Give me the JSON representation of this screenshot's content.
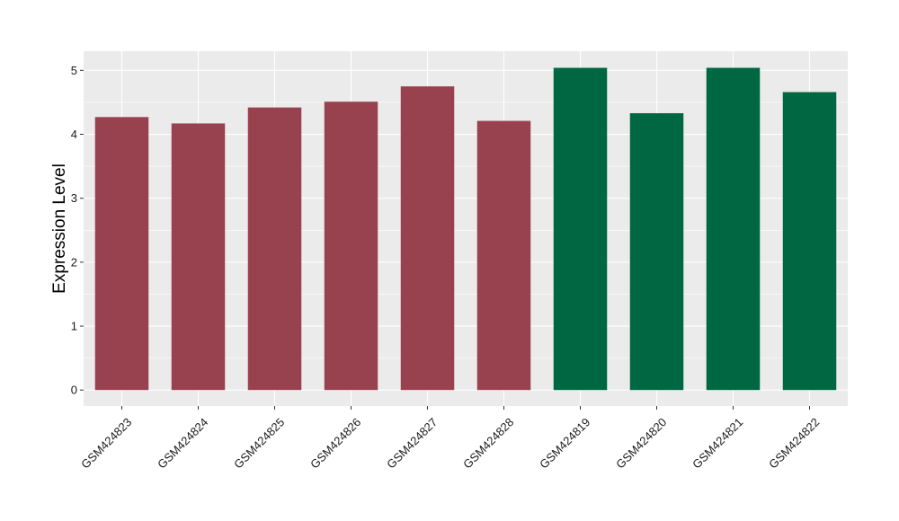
{
  "chart_data": {
    "type": "bar",
    "title": "",
    "xlabel": "",
    "ylabel": "Expression Level",
    "ylim": [
      -0.25,
      5.3
    ],
    "yticks": [
      0,
      1,
      2,
      3,
      4,
      5
    ],
    "grid": true,
    "legend": "none",
    "categories": [
      "GSM424823",
      "GSM424824",
      "GSM424825",
      "GSM424826",
      "GSM424827",
      "GSM424828",
      "GSM424819",
      "GSM424820",
      "GSM424821",
      "GSM424822"
    ],
    "values": [
      4.27,
      4.17,
      4.42,
      4.51,
      4.75,
      4.21,
      5.04,
      4.33,
      5.04,
      4.66
    ],
    "bar_colors": [
      "#99424f",
      "#99424f",
      "#99424f",
      "#99424f",
      "#99424f",
      "#99424f",
      "#006743",
      "#006743",
      "#006743",
      "#006743"
    ],
    "panel_background": "#ebebeb",
    "grid_color": "#ffffff"
  }
}
